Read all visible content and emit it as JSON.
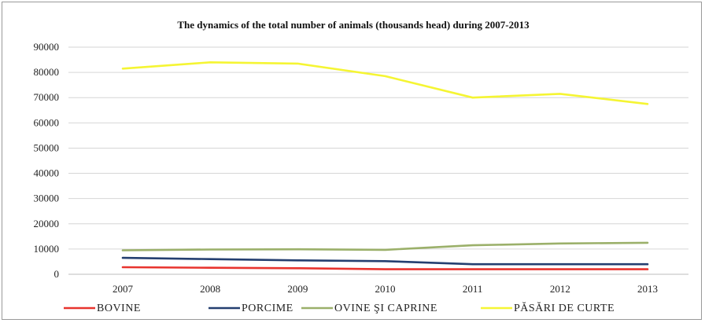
{
  "chart_data": {
    "type": "line",
    "title": "The dynamics of the total number  of animals (thousands head) during  2007-2013",
    "xlabel": "",
    "ylabel": "",
    "x": [
      "2007",
      "2008",
      "2009",
      "2010",
      "2011",
      "2012",
      "2013"
    ],
    "ylim": [
      0,
      90000
    ],
    "yticks": [
      "0",
      "10000",
      "20000",
      "30000",
      "40000",
      "50000",
      "60000",
      "70000",
      "80000",
      "90000"
    ],
    "grid": true,
    "legend_position": "bottom",
    "series": [
      {
        "name": "BOVINE",
        "color": "#e8342e",
        "values": [
          2800,
          2600,
          2400,
          2000,
          2000,
          2000,
          2000
        ]
      },
      {
        "name": "PORCIME",
        "color": "#243f70",
        "values": [
          6500,
          6000,
          5500,
          5200,
          4000,
          4000,
          4000
        ]
      },
      {
        "name": "OVINE ŞI CAPRINE",
        "color": "#9bb06a",
        "values": [
          9500,
          9800,
          9900,
          9700,
          11500,
          12200,
          12500
        ]
      },
      {
        "name": "PĂSĂRI DE CURTE",
        "color": "#f5f533",
        "values": [
          81500,
          84000,
          83500,
          78500,
          70000,
          71500,
          67500
        ]
      }
    ]
  }
}
